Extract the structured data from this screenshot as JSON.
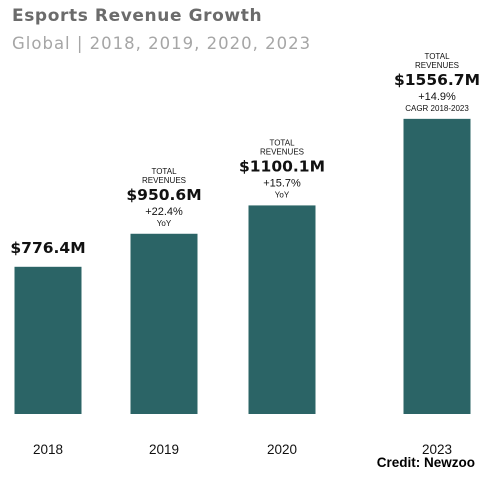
{
  "chart_data": {
    "type": "bar",
    "title": "Esports Revenue Growth",
    "subtitle": "Global | 2018, 2019, 2020, 2023",
    "categories": [
      "2018",
      "2019",
      "2020",
      "2023"
    ],
    "values": [
      776.4,
      950.6,
      1100.1,
      1556.7
    ],
    "value_labels": [
      "$776.4M",
      "$950.6M",
      "$1100.1M",
      "$1556.7M"
    ],
    "annotations": [
      {
        "label_top": "",
        "growth": "",
        "growth_note": ""
      },
      {
        "label_top": "TOTAL REVENUES",
        "growth": "+22.4%",
        "growth_note": "YoY"
      },
      {
        "label_top": "TOTAL REVENUES",
        "growth": "+15.7%",
        "growth_note": "YoY"
      },
      {
        "label_top": "TOTAL REVENUES",
        "growth": "+14.9%",
        "growth_note": "CAGR 2018-2023"
      }
    ],
    "bar_color": "#2b6466",
    "xlabel": "",
    "ylabel": "",
    "legend": "none",
    "grid": false
  },
  "credit": "Credit: Newzoo"
}
